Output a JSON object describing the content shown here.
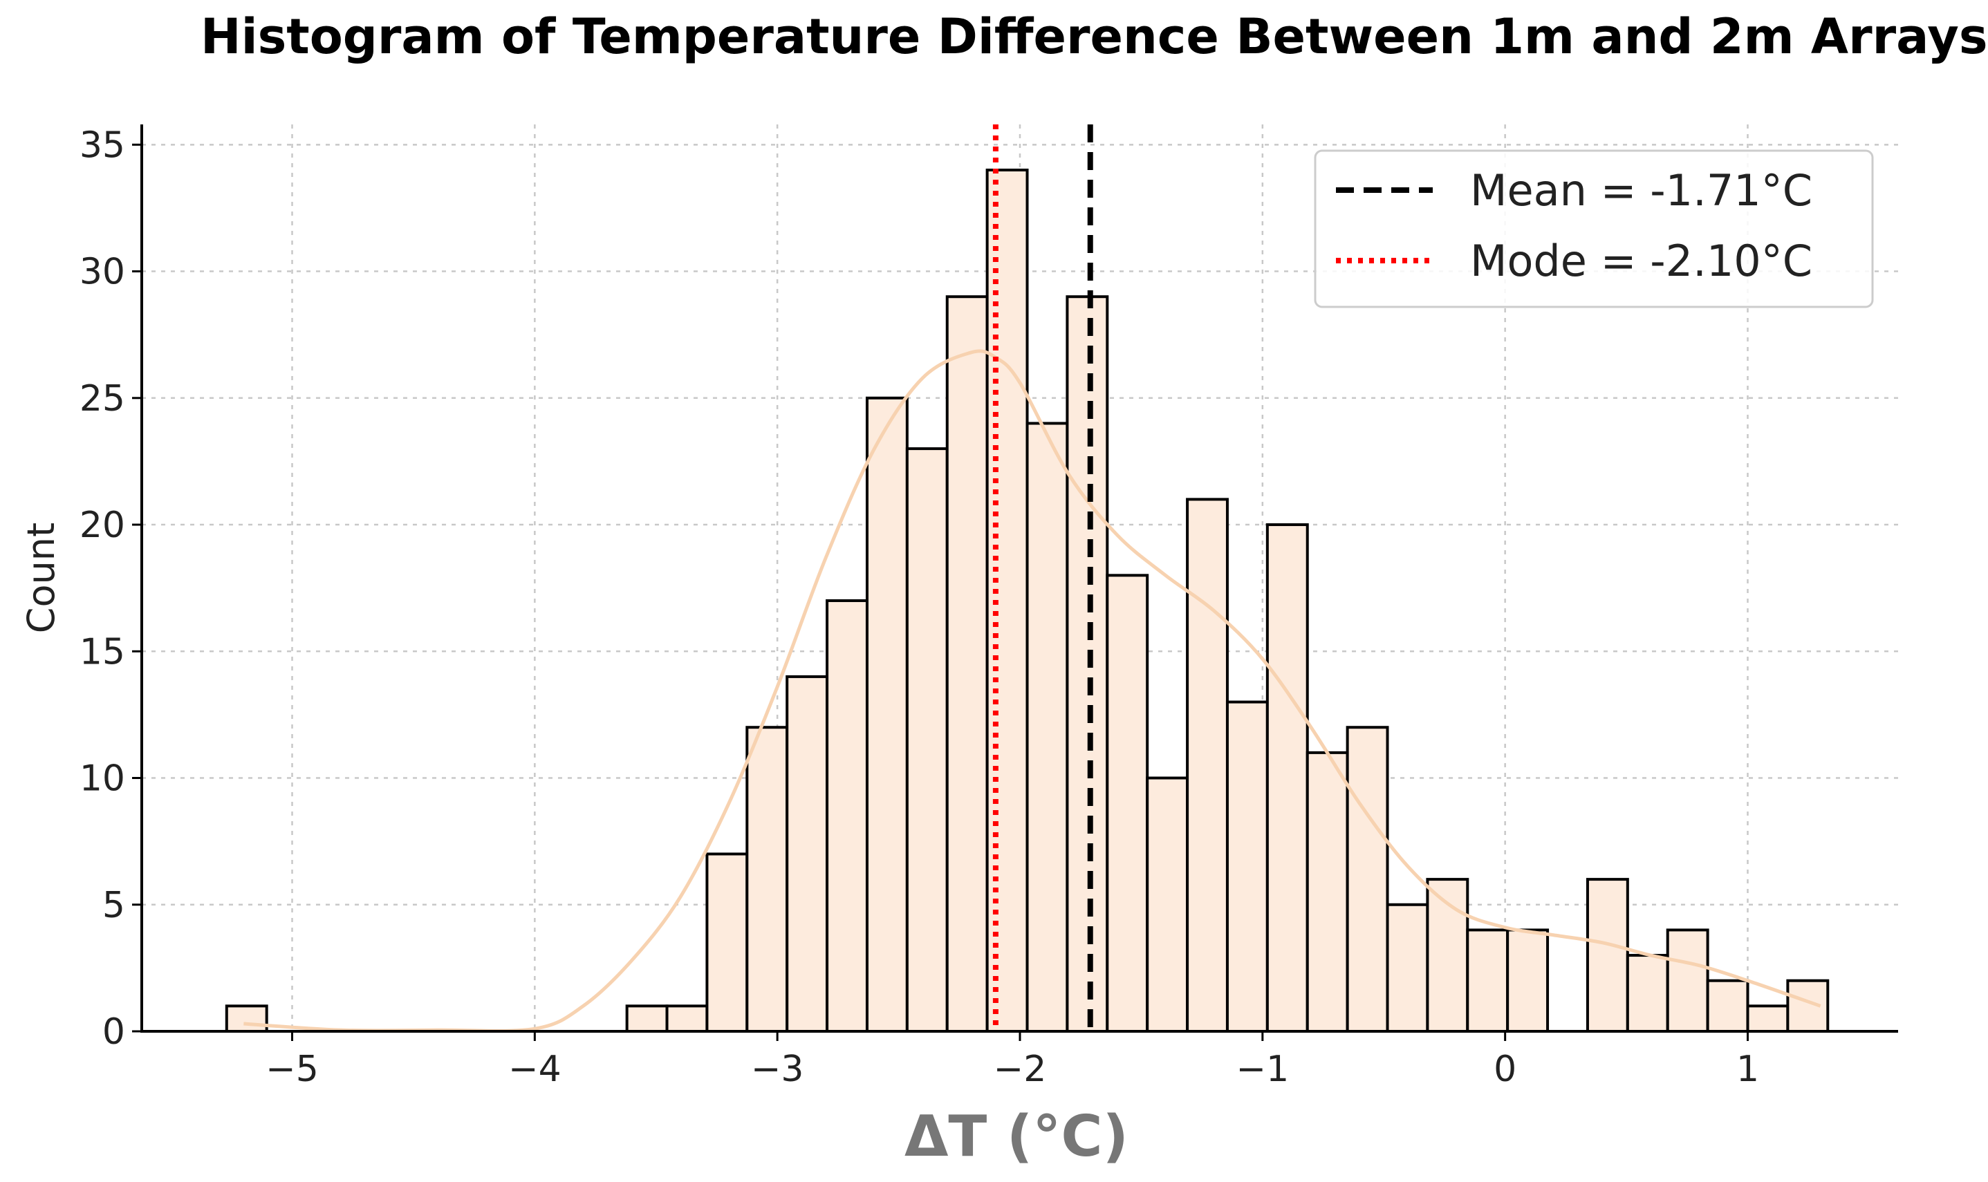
{
  "chart_data": {
    "type": "bar",
    "title": "Histogram of Temperature Difference Between 1m and 2m Arrays",
    "xlabel": "ΔT (°C)",
    "ylabel": "Count",
    "xlim": [
      -5.62,
      1.62
    ],
    "ylim": [
      0,
      35.8
    ],
    "x_ticks": [
      -5,
      -4,
      -3,
      -2,
      -1,
      0,
      1
    ],
    "x_tick_labels": [
      "−5",
      "−4",
      "−3",
      "−2",
      "−1",
      "0",
      "1"
    ],
    "y_ticks": [
      0,
      5,
      10,
      15,
      20,
      25,
      30,
      35
    ],
    "y_tick_labels": [
      "0",
      "5",
      "10",
      "15",
      "20",
      "25",
      "30",
      "35"
    ],
    "grid": true,
    "bin_edges": [
      -5.27,
      -5.105,
      -4.94,
      -4.775,
      -4.61,
      -4.445,
      -4.28,
      -4.115,
      -3.95,
      -3.785,
      -3.62,
      -3.455,
      -3.29,
      -3.125,
      -2.96,
      -2.795,
      -2.63,
      -2.465,
      -2.3,
      -2.135,
      -1.97,
      -1.805,
      -1.64,
      -1.475,
      -1.31,
      -1.145,
      -0.98,
      -0.815,
      -0.65,
      -0.485,
      -0.32,
      -0.155,
      0.01,
      0.175,
      0.34,
      0.505,
      0.67,
      0.835,
      1.0,
      1.165,
      1.33
    ],
    "counts": [
      1,
      0,
      0,
      0,
      0,
      0,
      0,
      0,
      0,
      0,
      1,
      1,
      7,
      12,
      14,
      17,
      25,
      23,
      29,
      34,
      24,
      29,
      18,
      10,
      21,
      13,
      20,
      11,
      12,
      5,
      6,
      4,
      4,
      0,
      6,
      3,
      4,
      2,
      1,
      2
    ],
    "bar_color": "#fdebdd",
    "bar_edge_color": "#000000",
    "kde": {
      "color": "#f7d2b0",
      "x": [
        -5.2,
        -4.8,
        -4.4,
        -4.0,
        -3.8,
        -3.6,
        -3.4,
        -3.2,
        -3.0,
        -2.8,
        -2.6,
        -2.4,
        -2.2,
        -2.1,
        -2.0,
        -1.8,
        -1.6,
        -1.4,
        -1.2,
        -1.0,
        -0.8,
        -0.6,
        -0.4,
        -0.2,
        0.0,
        0.2,
        0.4,
        0.6,
        0.8,
        1.0,
        1.3
      ],
      "y": [
        0.3,
        0.05,
        0.05,
        0.1,
        1.0,
        2.8,
        5.3,
        9.0,
        13.6,
        18.7,
        23.0,
        25.8,
        26.8,
        26.6,
        25.6,
        22.0,
        19.6,
        18.0,
        16.6,
        14.7,
        12.0,
        9.0,
        6.5,
        4.8,
        4.1,
        3.8,
        3.5,
        3.0,
        2.6,
        2.0,
        1.0
      ]
    },
    "reference_lines": [
      {
        "name": "Mean",
        "value": -1.71,
        "label": "Mean = -1.71°C",
        "color": "#000000",
        "style": "dashed"
      },
      {
        "name": "Mode",
        "value": -2.1,
        "label": "Mode = -2.10°C",
        "color": "#ff0000",
        "style": "dotted"
      }
    ],
    "legend_position": "upper-right"
  }
}
